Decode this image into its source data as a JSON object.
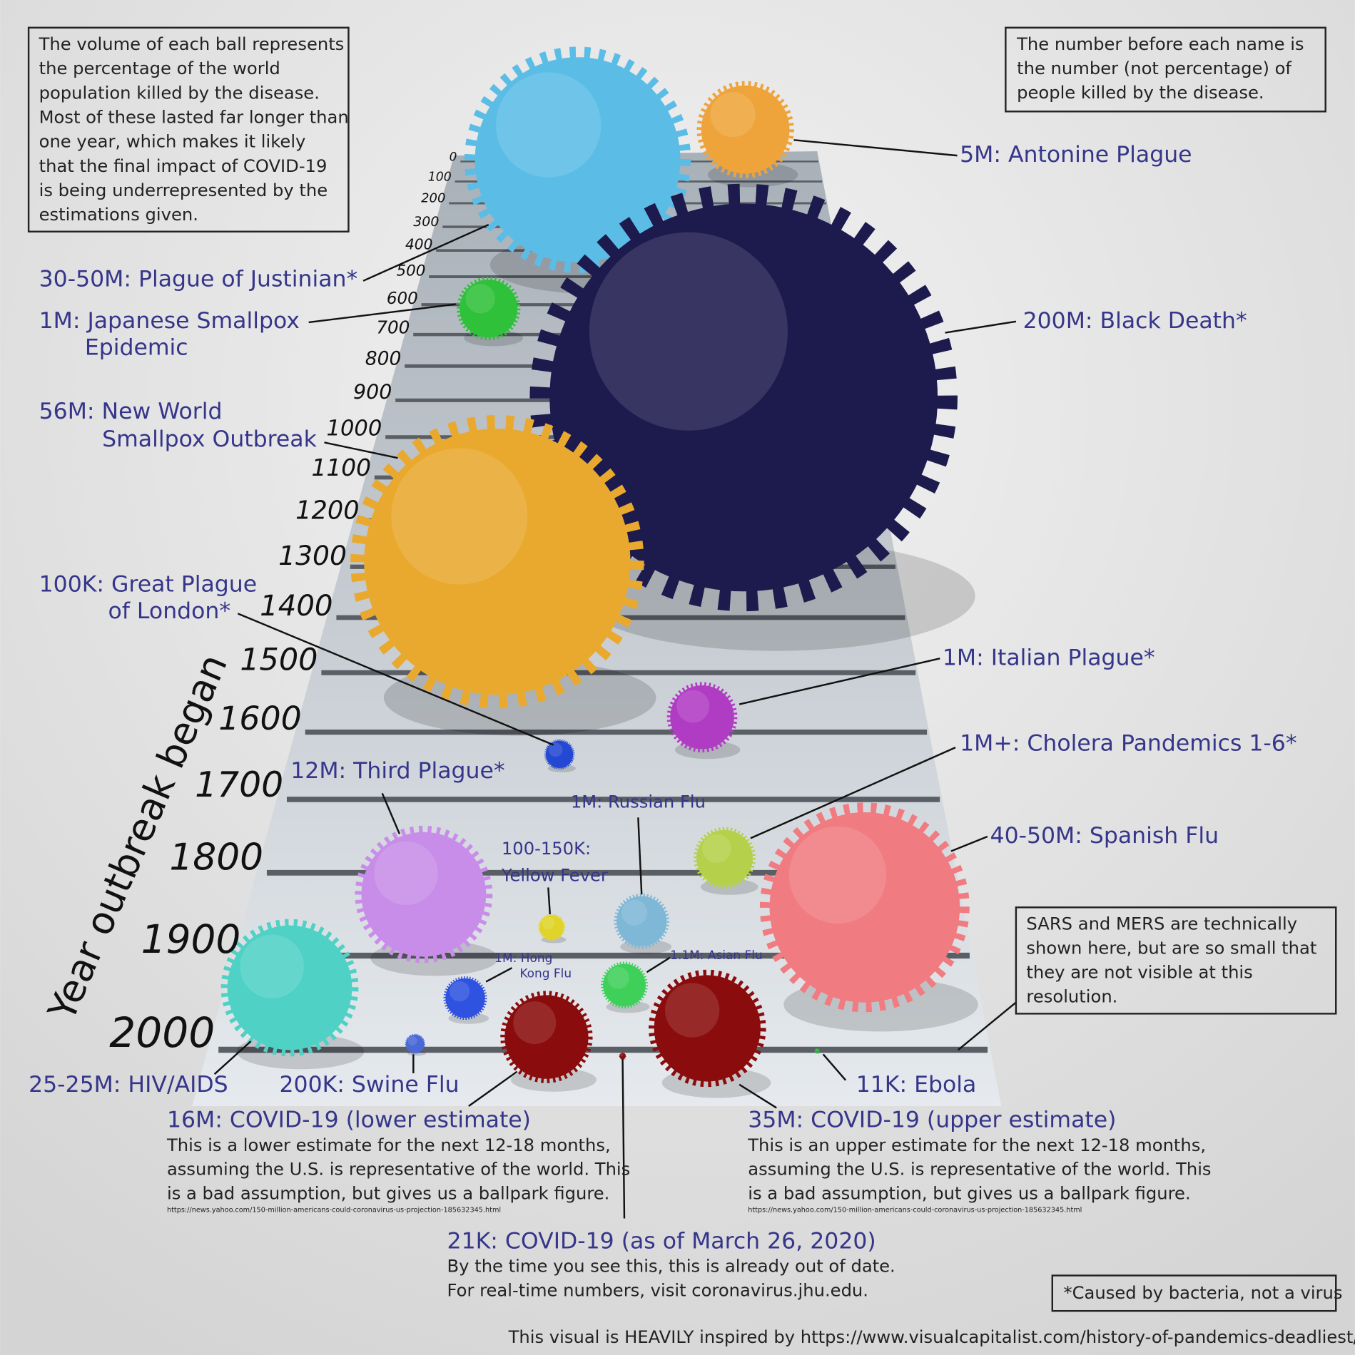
{
  "notes": {
    "volume": [
      "The volume of each ball represents",
      "the percentage of the world",
      "population killed by the disease.",
      "Most of these lasted far longer than",
      "one year, which makes it likely",
      "that the final impact of COVID-19",
      "is being underrepresented by the",
      "estimations given."
    ],
    "number": [
      "The number before each name is",
      "the number (not percentage) of",
      "people killed by the disease."
    ],
    "sars": [
      "SARS and MERS are technically",
      "shown here, but are so small that",
      "they are not visible at this",
      "resolution."
    ],
    "bacteria": "*Caused by bacteria, not a virus",
    "credit": "This visual is HEAVILY inspired by https://www.visualcapitalist.com/history-of-pandemics-deadliest/"
  },
  "axis": {
    "title": "Year outbreak began",
    "ticks": [
      0,
      100,
      200,
      300,
      400,
      500,
      600,
      700,
      800,
      900,
      1000,
      1100,
      1200,
      1300,
      1400,
      1500,
      1600,
      1700,
      1800,
      1900,
      2000
    ]
  },
  "labels": {
    "antonine": [
      "5M: Antonine Plague"
    ],
    "justinian": [
      "30-50M: Plague of Justinian*"
    ],
    "japanese": [
      "1M: Japanese Smallpox",
      "Epidemic"
    ],
    "black_death": [
      "200M: Black Death*"
    ],
    "new_world": [
      "56M: New World",
      "Smallpox Outbreak"
    ],
    "london": [
      "100K: Great Plague",
      "of London*"
    ],
    "italian": [
      "1M: Italian Plague*"
    ],
    "cholera": [
      "1M+: Cholera Pandemics 1-6*"
    ],
    "third": [
      "12M: Third Plague*"
    ],
    "russian": [
      "1M: Russian Flu"
    ],
    "yellow_fever": [
      "100-150K:",
      "Yellow Fever"
    ],
    "spanish": [
      "40-50M: Spanish Flu"
    ],
    "hong_kong": [
      "1M: Hong",
      "Kong Flu"
    ],
    "asian": [
      "1.1M: Asian Flu"
    ],
    "hiv": [
      "25-25M: HIV/AIDS"
    ],
    "swine": [
      "200K: Swine Flu"
    ],
    "ebola": [
      "11K: Ebola"
    ]
  },
  "covid": {
    "lower": {
      "title": "16M: COVID-19 (lower estimate)",
      "body": [
        "This is a lower estimate for the next 12-18 months,",
        "assuming the U.S. is representative of the world. This",
        "is a bad assumption, but gives us a ballpark figure."
      ],
      "source": "https://news.yahoo.com/150-million-americans-could-coronavirus-us-projection-185632345.html"
    },
    "upper": {
      "title": "35M: COVID-19 (upper estimate)",
      "body": [
        "This is an upper estimate for the next 12-18 months,",
        "assuming the U.S. is representative of the world. This",
        "is a bad assumption, but gives us a ballpark figure."
      ],
      "source": "https://news.yahoo.com/150-million-americans-could-coronavirus-us-projection-185632345.html"
    },
    "current": {
      "title": "21K: COVID-19 (as of March 26, 2020)",
      "body": [
        "By the time you see this, this is already out of date.",
        "For real-time numbers, visit coronavirus.jhu.edu."
      ]
    }
  }
}
